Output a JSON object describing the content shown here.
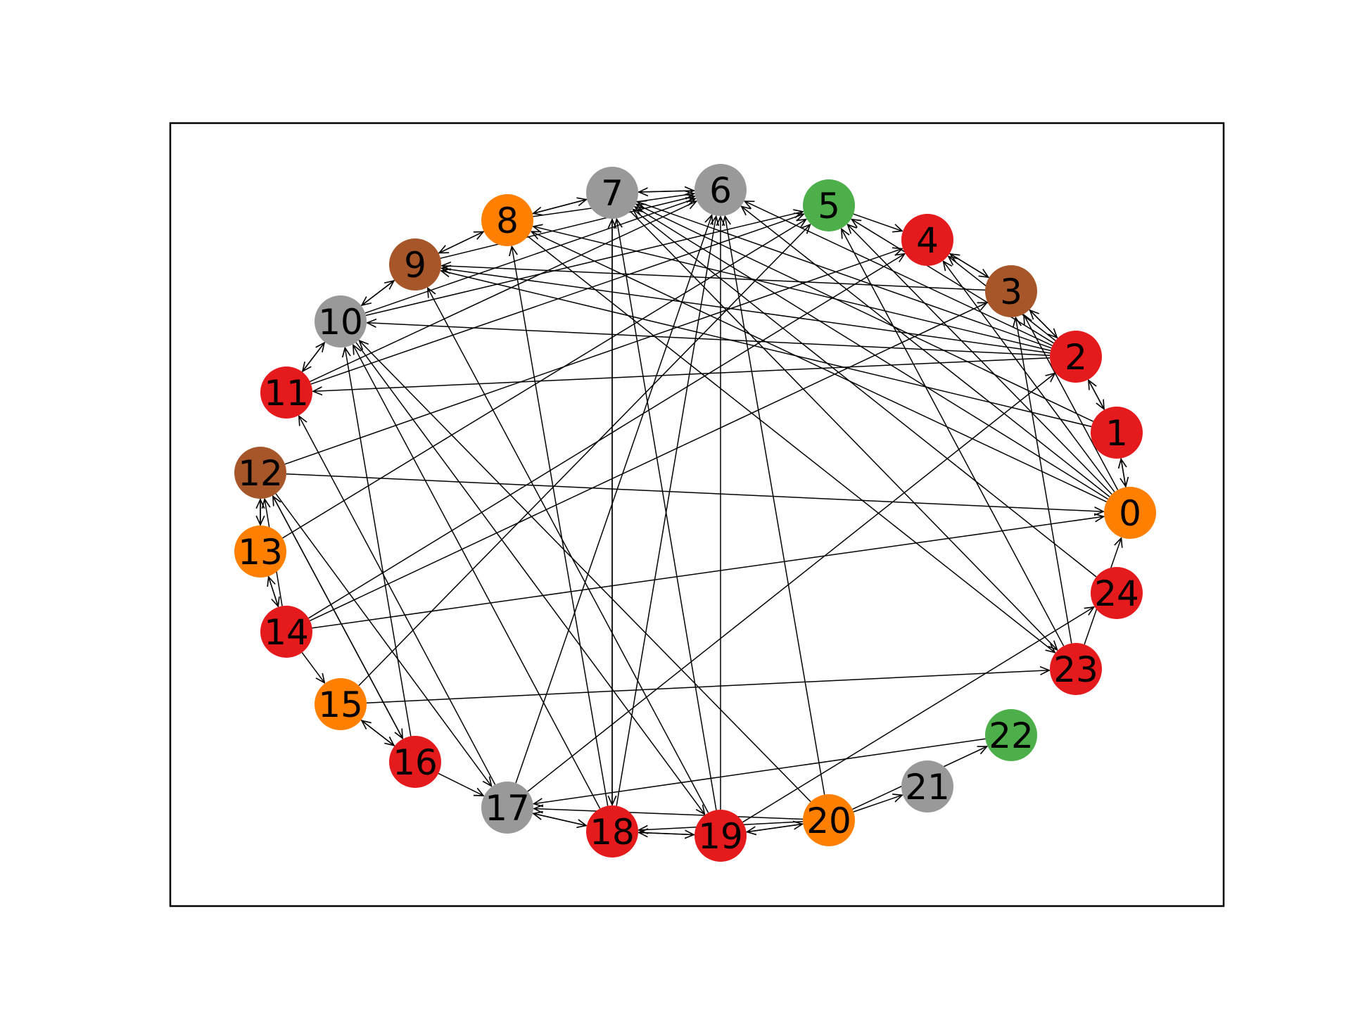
{
  "graph": {
    "directed": true,
    "colors": {
      "red": "#e41a1c",
      "orange": "#ff7f00",
      "gray": "#999999",
      "green": "#4daf4a",
      "brown": "#a65628",
      "edge": "#000000",
      "frame": "#000000"
    },
    "nodes": [
      {
        "id": "0",
        "label": "0",
        "color": "orange"
      },
      {
        "id": "1",
        "label": "1",
        "color": "red"
      },
      {
        "id": "2",
        "label": "2",
        "color": "red"
      },
      {
        "id": "3",
        "label": "3",
        "color": "brown"
      },
      {
        "id": "4",
        "label": "4",
        "color": "red"
      },
      {
        "id": "5",
        "label": "5",
        "color": "green"
      },
      {
        "id": "6",
        "label": "6",
        "color": "gray"
      },
      {
        "id": "7",
        "label": "7",
        "color": "gray"
      },
      {
        "id": "8",
        "label": "8",
        "color": "orange"
      },
      {
        "id": "9",
        "label": "9",
        "color": "brown"
      },
      {
        "id": "10",
        "label": "10",
        "color": "gray"
      },
      {
        "id": "11",
        "label": "11",
        "color": "red"
      },
      {
        "id": "12",
        "label": "12",
        "color": "brown"
      },
      {
        "id": "13",
        "label": "13",
        "color": "orange"
      },
      {
        "id": "14",
        "label": "14",
        "color": "red"
      },
      {
        "id": "15",
        "label": "15",
        "color": "orange"
      },
      {
        "id": "16",
        "label": "16",
        "color": "red"
      },
      {
        "id": "17",
        "label": "17",
        "color": "gray"
      },
      {
        "id": "18",
        "label": "18",
        "color": "red"
      },
      {
        "id": "19",
        "label": "19",
        "color": "red"
      },
      {
        "id": "20",
        "label": "20",
        "color": "orange"
      },
      {
        "id": "21",
        "label": "21",
        "color": "gray"
      },
      {
        "id": "22",
        "label": "22",
        "color": "green"
      },
      {
        "id": "23",
        "label": "23",
        "color": "red"
      },
      {
        "id": "24",
        "label": "24",
        "color": "red"
      }
    ],
    "edges": [
      [
        "0",
        "1"
      ],
      [
        "1",
        "0"
      ],
      [
        "1",
        "2"
      ],
      [
        "2",
        "1"
      ],
      [
        "2",
        "3"
      ],
      [
        "3",
        "2"
      ],
      [
        "3",
        "4"
      ],
      [
        "4",
        "3"
      ],
      [
        "2",
        "4"
      ],
      [
        "2",
        "5"
      ],
      [
        "2",
        "6"
      ],
      [
        "2",
        "7"
      ],
      [
        "2",
        "8"
      ],
      [
        "2",
        "9"
      ],
      [
        "2",
        "10"
      ],
      [
        "2",
        "11"
      ],
      [
        "1",
        "7"
      ],
      [
        "1",
        "9"
      ],
      [
        "0",
        "5"
      ],
      [
        "0",
        "6"
      ],
      [
        "0",
        "4"
      ],
      [
        "0",
        "3"
      ],
      [
        "0",
        "7"
      ],
      [
        "0",
        "8"
      ],
      [
        "5",
        "4"
      ],
      [
        "6",
        "7"
      ],
      [
        "7",
        "6"
      ],
      [
        "7",
        "8"
      ],
      [
        "8",
        "7"
      ],
      [
        "8",
        "6"
      ],
      [
        "8",
        "9"
      ],
      [
        "9",
        "8"
      ],
      [
        "9",
        "10"
      ],
      [
        "10",
        "9"
      ],
      [
        "10",
        "11"
      ],
      [
        "11",
        "10"
      ],
      [
        "9",
        "6"
      ],
      [
        "10",
        "6"
      ],
      [
        "10",
        "5"
      ],
      [
        "11",
        "5"
      ],
      [
        "11",
        "6"
      ],
      [
        "12",
        "13"
      ],
      [
        "13",
        "12"
      ],
      [
        "13",
        "14"
      ],
      [
        "14",
        "13"
      ],
      [
        "14",
        "15"
      ],
      [
        "12",
        "16"
      ],
      [
        "16",
        "12"
      ],
      [
        "15",
        "16"
      ],
      [
        "16",
        "15"
      ],
      [
        "14",
        "12"
      ],
      [
        "16",
        "17"
      ],
      [
        "15",
        "5"
      ],
      [
        "15",
        "23"
      ],
      [
        "14",
        "4"
      ],
      [
        "14",
        "0"
      ],
      [
        "14",
        "3"
      ],
      [
        "13",
        "5"
      ],
      [
        "12",
        "0"
      ],
      [
        "12",
        "4"
      ],
      [
        "17",
        "18"
      ],
      [
        "18",
        "17"
      ],
      [
        "18",
        "19"
      ],
      [
        "19",
        "18"
      ],
      [
        "19",
        "20"
      ],
      [
        "20",
        "19"
      ],
      [
        "20",
        "21"
      ],
      [
        "20",
        "22"
      ],
      [
        "22",
        "17"
      ],
      [
        "20",
        "17"
      ],
      [
        "18",
        "7"
      ],
      [
        "7",
        "18"
      ],
      [
        "18",
        "8"
      ],
      [
        "18",
        "6"
      ],
      [
        "19",
        "7"
      ],
      [
        "19",
        "6"
      ],
      [
        "20",
        "6"
      ],
      [
        "20",
        "10"
      ],
      [
        "19",
        "9"
      ],
      [
        "17",
        "11"
      ],
      [
        "17",
        "2"
      ],
      [
        "17",
        "6"
      ],
      [
        "18",
        "10"
      ],
      [
        "20",
        "18"
      ],
      [
        "19",
        "24"
      ],
      [
        "23",
        "0"
      ],
      [
        "23",
        "3"
      ],
      [
        "23",
        "5"
      ],
      [
        "24",
        "7"
      ],
      [
        "7",
        "23"
      ],
      [
        "8",
        "23"
      ],
      [
        "10",
        "19"
      ],
      [
        "12",
        "17"
      ],
      [
        "16",
        "10"
      ],
      [
        "3",
        "9"
      ]
    ]
  }
}
